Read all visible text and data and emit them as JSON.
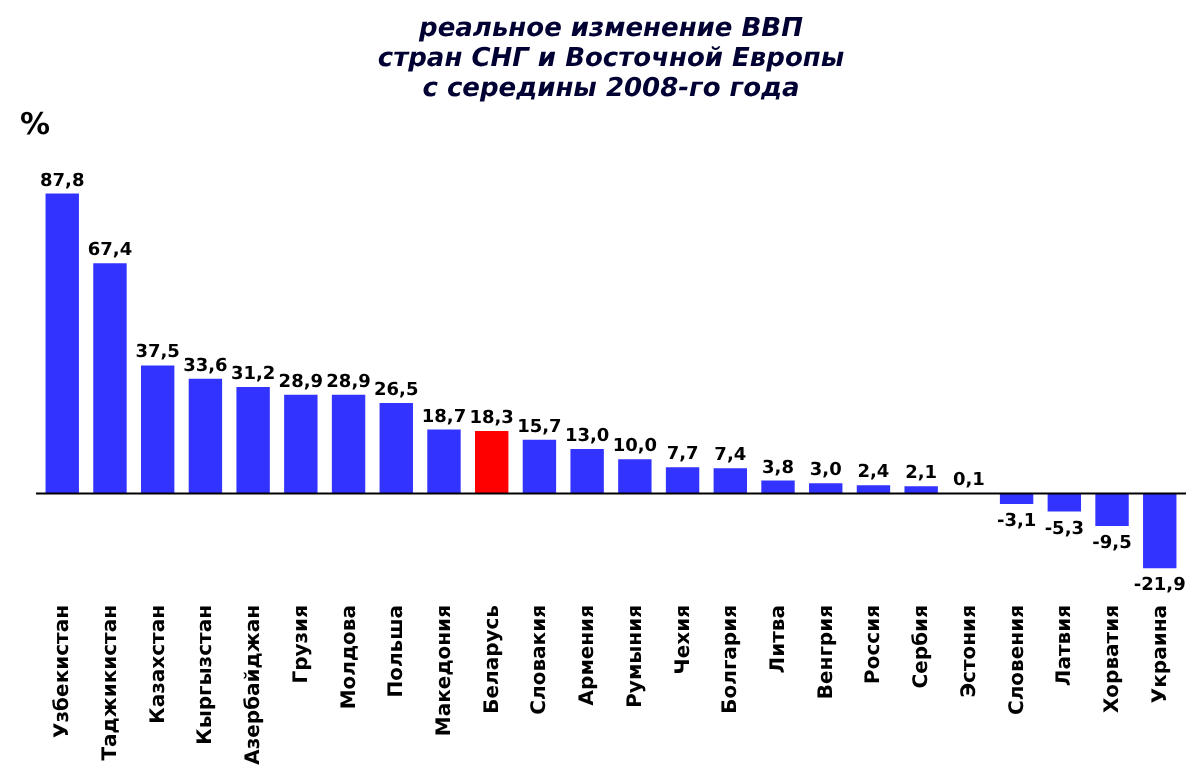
{
  "chart_data": {
    "type": "bar",
    "title": [
      "реальное изменение ВВП",
      "стран СНГ и Восточной Европы",
      "с середины 2008-го года"
    ],
    "ylabel": "%",
    "categories": [
      "Узбекистан",
      "Таджикистан",
      "Казахстан",
      "Кыргызстан",
      "Азербайджан",
      "Грузия",
      "Молдова",
      "Польша",
      "Македония",
      "Беларусь",
      "Словакия",
      "Армения",
      "Румыния",
      "Чехия",
      "Болгария",
      "Литва",
      "Венгрия",
      "Россия",
      "Сербия",
      "Эстония",
      "Словения",
      "Латвия",
      "Хорватия",
      "Украина"
    ],
    "values": [
      87.8,
      67.4,
      37.5,
      33.6,
      31.2,
      28.9,
      28.9,
      26.5,
      18.7,
      18.3,
      15.7,
      13.0,
      10.0,
      7.7,
      7.4,
      3.8,
      3.0,
      2.4,
      2.1,
      0.1,
      -3.1,
      -5.3,
      -9.5,
      -21.9
    ],
    "value_labels": [
      "87,8",
      "67,4",
      "37,5",
      "33,6",
      "31,2",
      "28,9",
      "28,9",
      "26,5",
      "18,7",
      "18,3",
      "15,7",
      "13,0",
      "10,0",
      "7,7",
      "7,4",
      "3,8",
      "3,0",
      "2,4",
      "2,1",
      "0,1",
      "-3,1",
      "-5,3",
      "-9,5",
      "-21,9"
    ],
    "colors": [
      "#3333ff",
      "#3333ff",
      "#3333ff",
      "#3333ff",
      "#3333ff",
      "#3333ff",
      "#3333ff",
      "#3333ff",
      "#3333ff",
      "#ff0000",
      "#3333ff",
      "#3333ff",
      "#3333ff",
      "#3333ff",
      "#3333ff",
      "#3333ff",
      "#3333ff",
      "#3333ff",
      "#3333ff",
      "#3333ff",
      "#3333ff",
      "#3333ff",
      "#3333ff",
      "#3333ff"
    ],
    "orientation": "vertical"
  }
}
